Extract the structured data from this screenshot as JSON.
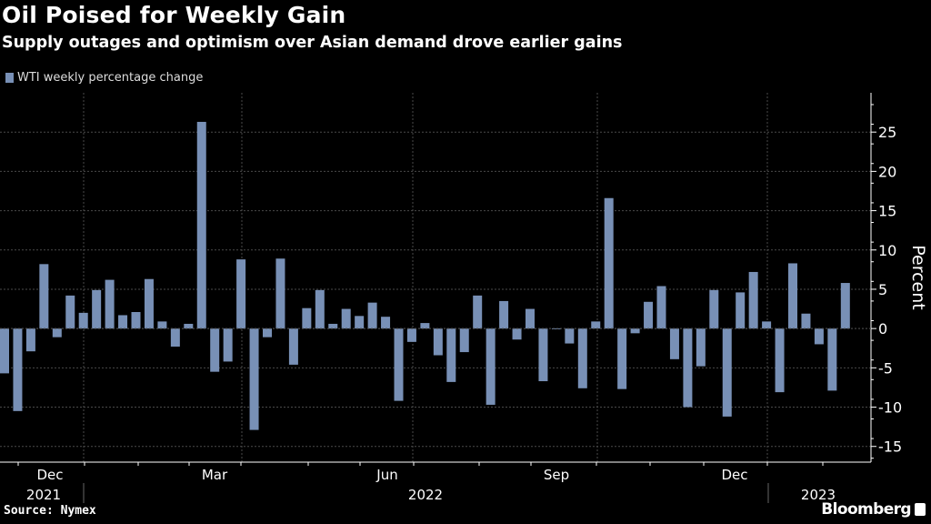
{
  "header": {
    "title": "Oil Poised for Weekly Gain",
    "subtitle": "Supply outages and optimism over Asian demand drove earlier gains"
  },
  "footer": {
    "source": "Source: Nymex",
    "brand": "Bloomberg"
  },
  "colors": {
    "bar": "#7890b6",
    "background": "#000000",
    "grid": "#4a4a4a"
  },
  "chart_data": {
    "type": "bar",
    "title": "Oil Poised for Weekly Gain",
    "subtitle": "Supply outages and optimism over Asian demand drove earlier gains",
    "legend": {
      "position": "top-left",
      "entries": [
        "WTI weekly percentage change"
      ]
    },
    "series": [
      {
        "name": "WTI weekly percentage change",
        "values": [
          -5.7,
          -10.5,
          -2.9,
          8.2,
          -1.1,
          4.2,
          2.0,
          4.9,
          6.2,
          1.7,
          2.1,
          6.3,
          0.9,
          -2.3,
          0.6,
          26.3,
          -5.5,
          -4.2,
          8.8,
          -12.9,
          -1.1,
          8.9,
          -4.6,
          2.6,
          4.9,
          0.6,
          2.5,
          1.6,
          3.3,
          1.5,
          -9.2,
          -1.7,
          0.7,
          -3.4,
          -6.8,
          -3.0,
          4.2,
          -9.7,
          3.5,
          -1.4,
          2.5,
          -6.7,
          -0.1,
          -1.9,
          -7.6,
          0.9,
          16.6,
          -7.7,
          -0.6,
          3.4,
          5.4,
          -3.9,
          -10.0,
          -4.8,
          4.9,
          -11.2,
          4.6,
          7.2,
          0.9,
          -8.1,
          8.3,
          1.9,
          -2.0,
          -7.9,
          5.8
        ]
      }
    ],
    "xlabel": "",
    "ylabel": "Percent",
    "ylim": [
      -17,
      30
    ],
    "y_ticks": [
      -15,
      -10,
      -5,
      0,
      5,
      10,
      15,
      20,
      25
    ],
    "y_axis_side": "right",
    "x_month_labels": [
      "Dec",
      "Mar",
      "Jun",
      "Sep",
      "Dec"
    ],
    "x_year_labels": [
      "2021",
      "2022",
      "2023"
    ],
    "grid": true
  }
}
